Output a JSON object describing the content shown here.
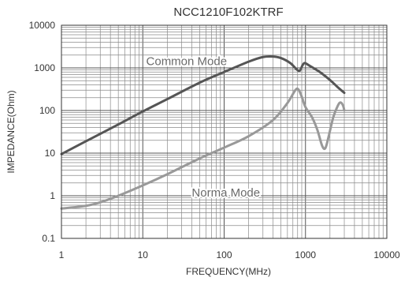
{
  "chart_data": {
    "type": "line",
    "title": "NCC1210F102KTRF",
    "xlabel": "FREQUENCY(MHz)",
    "ylabel": "IMPEDANCE(Ohm)",
    "x_scale": "log",
    "y_scale": "log",
    "xlim": [
      1,
      10000
    ],
    "ylim": [
      0.1,
      10000
    ],
    "grid": true,
    "x_ticks": [
      {
        "value": 1,
        "label": "1"
      },
      {
        "value": 10,
        "label": "10"
      },
      {
        "value": 100,
        "label": "100"
      },
      {
        "value": 1000,
        "label": "1000"
      },
      {
        "value": 10000,
        "label": "10000"
      }
    ],
    "y_ticks": [
      {
        "value": 0.1,
        "label": "0.1"
      },
      {
        "value": 1,
        "label": "1"
      },
      {
        "value": 10,
        "label": "10"
      },
      {
        "value": 100,
        "label": "100"
      },
      {
        "value": 1000,
        "label": "1000"
      },
      {
        "value": 10000,
        "label": "10000"
      }
    ],
    "series": [
      {
        "name": "Common Mode",
        "color": "#555555",
        "points": [
          [
            1,
            9.5
          ],
          [
            2,
            19
          ],
          [
            5,
            47
          ],
          [
            10,
            95
          ],
          [
            20,
            185
          ],
          [
            50,
            450
          ],
          [
            100,
            800
          ],
          [
            200,
            1400
          ],
          [
            300,
            1800
          ],
          [
            400,
            1850
          ],
          [
            500,
            1700
          ],
          [
            650,
            1300
          ],
          [
            780,
            920
          ],
          [
            850,
            860
          ],
          [
            920,
            1150
          ],
          [
            980,
            1300
          ],
          [
            1100,
            1150
          ],
          [
            1500,
            800
          ],
          [
            2000,
            520
          ],
          [
            2500,
            350
          ],
          [
            3000,
            260
          ]
        ]
      },
      {
        "name": "Norma Mode",
        "color": "#999999",
        "points": [
          [
            1,
            0.5
          ],
          [
            2,
            0.58
          ],
          [
            3,
            0.7
          ],
          [
            5,
            1.0
          ],
          [
            10,
            1.75
          ],
          [
            20,
            3.2
          ],
          [
            50,
            7.5
          ],
          [
            100,
            13.5
          ],
          [
            200,
            25
          ],
          [
            400,
            60
          ],
          [
            600,
            150
          ],
          [
            750,
            300
          ],
          [
            820,
            310
          ],
          [
            900,
            210
          ],
          [
            1000,
            120
          ],
          [
            1200,
            70
          ],
          [
            1400,
            35
          ],
          [
            1600,
            15
          ],
          [
            1750,
            13
          ],
          [
            1900,
            22
          ],
          [
            2200,
            70
          ],
          [
            2500,
            130
          ],
          [
            2700,
            155
          ],
          [
            2900,
            130
          ],
          [
            3000,
            100
          ]
        ]
      }
    ],
    "annotations": [
      {
        "text": "Common Mode",
        "x": 11,
        "y": 1150
      },
      {
        "text": "Norma Mode",
        "x": 40,
        "y": 0.95
      }
    ]
  }
}
